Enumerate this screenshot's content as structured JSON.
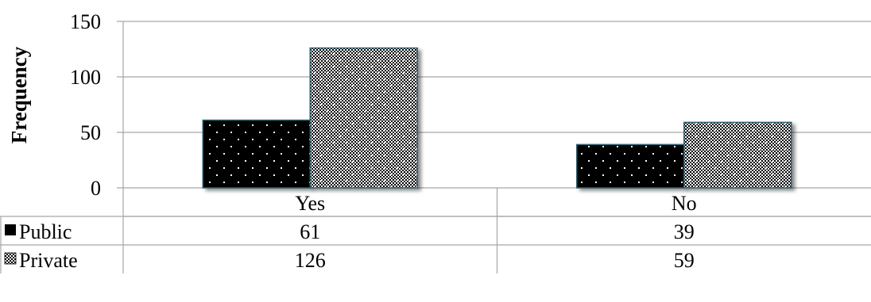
{
  "chart_data": {
    "type": "bar",
    "categories": [
      "Yes",
      "No"
    ],
    "series": [
      {
        "name": "Public",
        "values": [
          61,
          39
        ],
        "legend_icon": "solid-black-square-icon"
      },
      {
        "name": "Private",
        "values": [
          126,
          59
        ],
        "legend_icon": "checkered-square-icon"
      }
    ],
    "xlabel": "",
    "ylabel": "Frequency",
    "ylim": [
      0,
      150
    ],
    "yticks": [
      "0",
      "50",
      "100",
      "150"
    ],
    "grid": true,
    "legend": "data-table-below",
    "data_table": {
      "rows": [
        {
          "label": "Public",
          "cells": [
            "61",
            "39"
          ]
        },
        {
          "label": "Private",
          "cells": [
            "126",
            "59"
          ]
        }
      ]
    },
    "colors": {
      "public_fill": "#000000",
      "private_fill": "#ffffff",
      "grid": "#a6a6a6",
      "bar_edge": "#2e5f6e"
    }
  }
}
